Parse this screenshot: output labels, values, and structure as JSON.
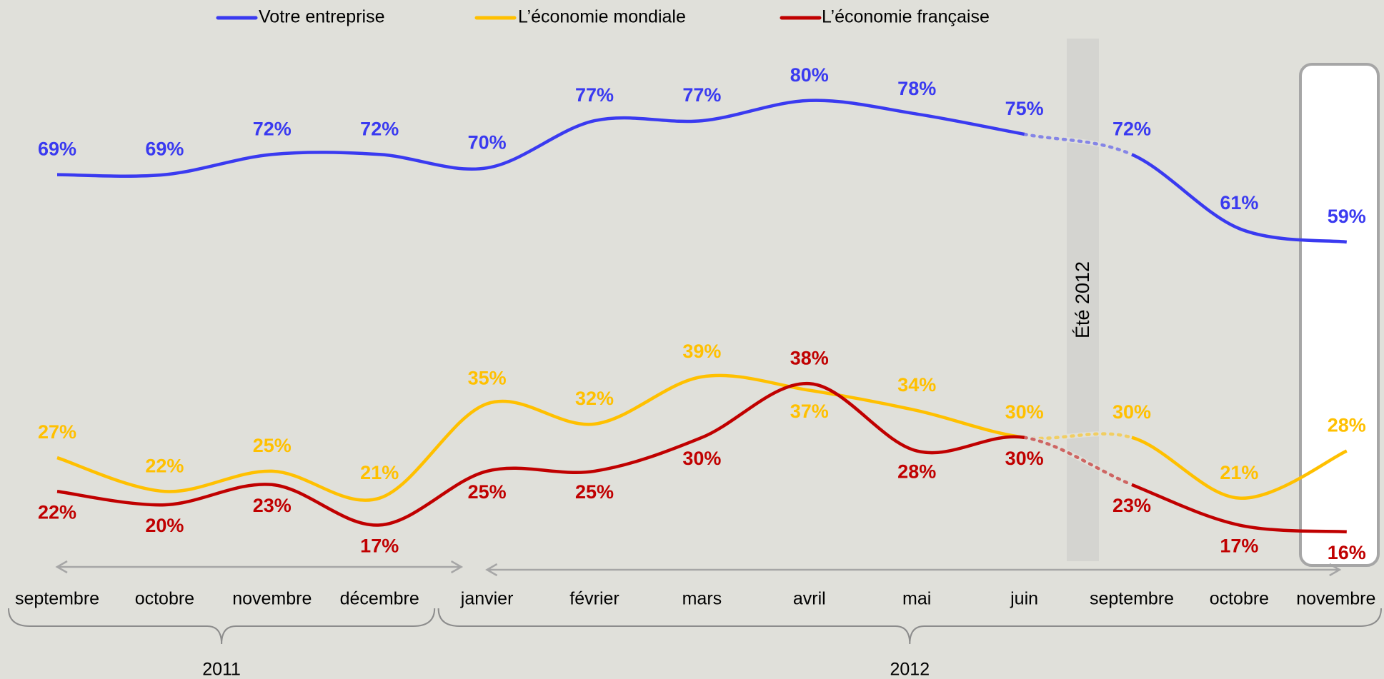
{
  "chart_data": {
    "type": "line",
    "categories": [
      "septembre",
      "octobre",
      "novembre",
      "décembre",
      "janvier",
      "février",
      "mars",
      "avril",
      "mai",
      "juin",
      "septembre",
      "octobre",
      "novembre"
    ],
    "groups": [
      {
        "label": "2011",
        "start": 0,
        "end": 3
      },
      {
        "label": "2012",
        "start": 4,
        "end": 12
      }
    ],
    "annotation": "Été 2012",
    "ylim": [
      10,
      90
    ],
    "series": [
      {
        "name": "Votre entreprise",
        "color": "#3a3af0",
        "values": [
          69,
          69,
          72,
          72,
          70,
          77,
          77,
          80,
          78,
          75,
          72,
          61,
          59
        ],
        "value_labels": [
          "69%",
          "69%",
          "72%",
          "72%",
          "70%",
          "77%",
          "77%",
          "80%",
          "78%",
          "75%",
          "72%",
          "61%",
          "59%"
        ]
      },
      {
        "name": "L’économie mondiale",
        "color": "#ffc000",
        "values": [
          27,
          22,
          25,
          21,
          35,
          32,
          39,
          37,
          34,
          30,
          30,
          21,
          28
        ],
        "value_labels": [
          "27%",
          "22%",
          "25%",
          "21%",
          "35%",
          "32%",
          "39%",
          "37%",
          "34%",
          "30%",
          "30%",
          "21%",
          "28%"
        ]
      },
      {
        "name": "L’économie française",
        "color": "#c00000",
        "values": [
          22,
          20,
          23,
          17,
          25,
          25,
          30,
          38,
          28,
          30,
          23,
          17,
          16
        ],
        "value_labels": [
          "22%",
          "20%",
          "23%",
          "17%",
          "25%",
          "25%",
          "30%",
          "38%",
          "28%",
          "30%",
          "23%",
          "17%",
          "16%"
        ]
      }
    ]
  }
}
